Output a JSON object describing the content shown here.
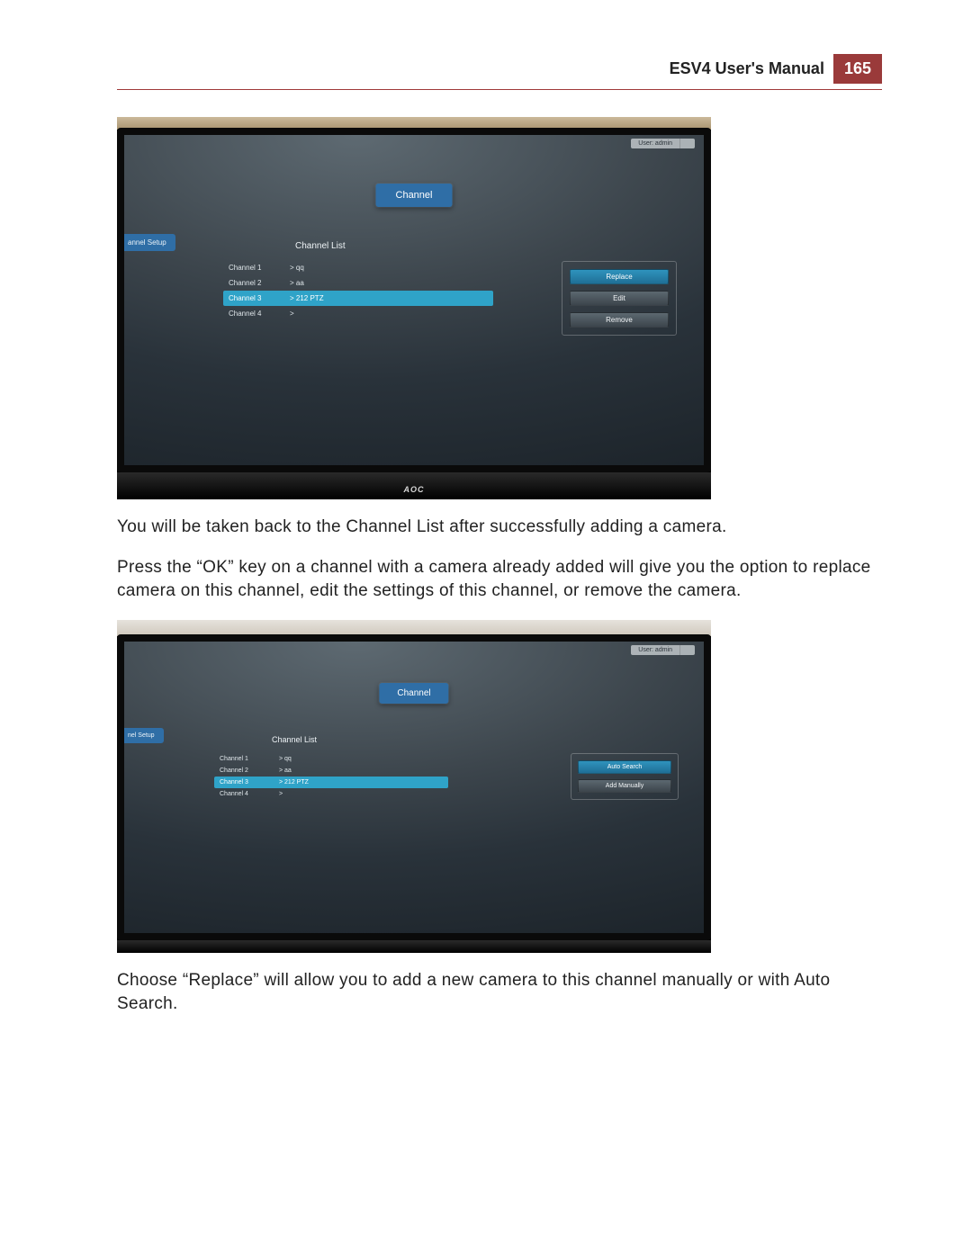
{
  "header": {
    "title": "ESV4 User's Manual",
    "page_number": "165",
    "badge_bg": "#9a3a3a",
    "rule_color": "#a03a3a"
  },
  "paragraphs": {
    "p1": "You will be taken back to the Channel List after successfully adding a camera.",
    "p2": "Press the “OK” key on a channel with a camera already added will give you the option to replace camera on this channel, edit the settings of this channel, or remove the camera.",
    "p3": "Choose “Replace” will allow you to add a new camera to this channel manually or with Auto Search."
  },
  "shot1": {
    "monitor_brand": "AOC",
    "topbar_user": "User: admin",
    "topbar_extra": "",
    "tab_label": "Channel",
    "side_tab": "annel Setup",
    "list_title": "Channel List",
    "channels": [
      {
        "label": "Channel 1",
        "value": "> qq",
        "selected": false
      },
      {
        "label": "Channel 2",
        "value": "> aa",
        "selected": false
      },
      {
        "label": "Channel 3",
        "value": "> 212 PTZ",
        "selected": true
      },
      {
        "label": "Channel 4",
        "value": ">",
        "selected": false
      }
    ],
    "actions": [
      {
        "label": "Replace",
        "highlight": true
      },
      {
        "label": "Edit",
        "highlight": false
      },
      {
        "label": "Remove",
        "highlight": false
      }
    ],
    "colors": {
      "pill_bg": "#2f6ea6",
      "row_selected_bg": "#2fa3c8",
      "panel_border": "rgba(255,255,255,0.25)",
      "screen_gradient_from": "#5e6a72",
      "screen_gradient_to": "#1a2127"
    }
  },
  "shot2": {
    "topbar_user": "User: admin",
    "topbar_extra": "",
    "tab_label": "Channel",
    "side_tab": "nel Setup",
    "list_title": "Channel List",
    "channels": [
      {
        "label": "Channel 1",
        "value": "> qq",
        "selected": false
      },
      {
        "label": "Channel 2",
        "value": "> aa",
        "selected": false
      },
      {
        "label": "Channel 3",
        "value": "> 212 PTZ",
        "selected": true
      },
      {
        "label": "Channel 4",
        "value": ">",
        "selected": false
      }
    ],
    "actions": [
      {
        "label": "Auto Search",
        "highlight": true
      },
      {
        "label": "Add Manually",
        "highlight": false
      }
    ],
    "colors": {
      "pill_bg": "#2f6ea6",
      "row_selected_bg": "#2fa3c8"
    }
  }
}
